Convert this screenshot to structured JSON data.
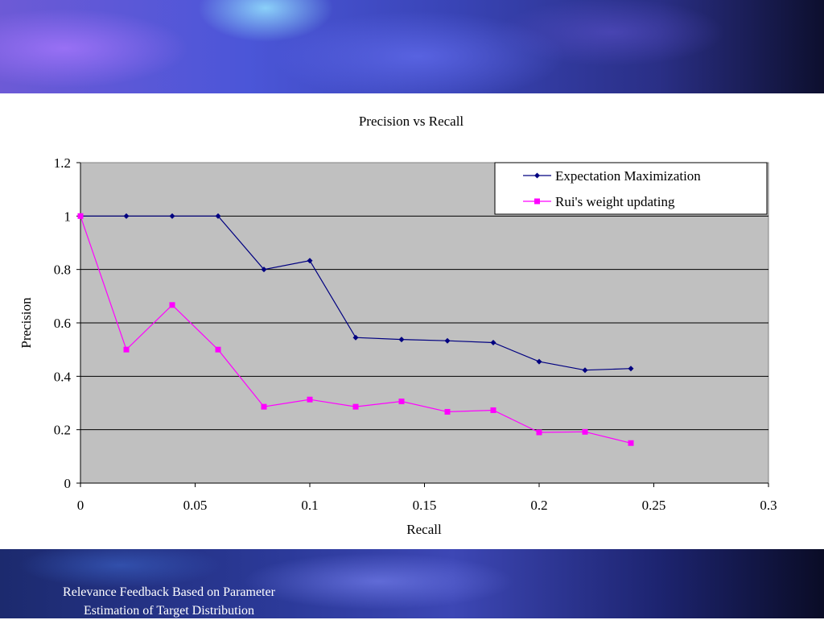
{
  "footer": {
    "line1": "Relevance Feedback Based on Parameter",
    "line2": "Estimation of Target Distribution"
  },
  "chart_data": {
    "type": "line",
    "title": "Precision vs Recall",
    "xlabel": "Recall",
    "ylabel": "Precision",
    "xlim": [
      0,
      0.3
    ],
    "ylim": [
      0,
      1.2
    ],
    "x_ticks": [
      "0",
      "0.05",
      "0.1",
      "0.15",
      "0.2",
      "0.25",
      "0.3"
    ],
    "y_ticks": [
      "0",
      "0.2",
      "0.4",
      "0.6",
      "0.8",
      "1",
      "1.2"
    ],
    "grid": "horizontal",
    "legend_position": "top-right",
    "background_color": "#c0c0c0",
    "series": [
      {
        "name": "Expectation Maximization",
        "color": "#000080",
        "marker": "diamond",
        "x": [
          0,
          0.02,
          0.04,
          0.06,
          0.08,
          0.1,
          0.12,
          0.14,
          0.16,
          0.18,
          0.2,
          0.22,
          0.24
        ],
        "y": [
          1,
          1,
          1,
          1,
          0.8,
          0.833,
          0.545,
          0.538,
          0.533,
          0.526,
          0.455,
          0.423,
          0.429
        ]
      },
      {
        "name": "Rui's weight updating",
        "color": "#ff00ff",
        "marker": "square",
        "x": [
          0,
          0.02,
          0.04,
          0.06,
          0.08,
          0.1,
          0.12,
          0.14,
          0.16,
          0.18,
          0.2,
          0.22,
          0.24
        ],
        "y": [
          1,
          0.5,
          0.667,
          0.5,
          0.286,
          0.313,
          0.286,
          0.306,
          0.267,
          0.273,
          0.19,
          0.192,
          0.15
        ]
      }
    ]
  }
}
